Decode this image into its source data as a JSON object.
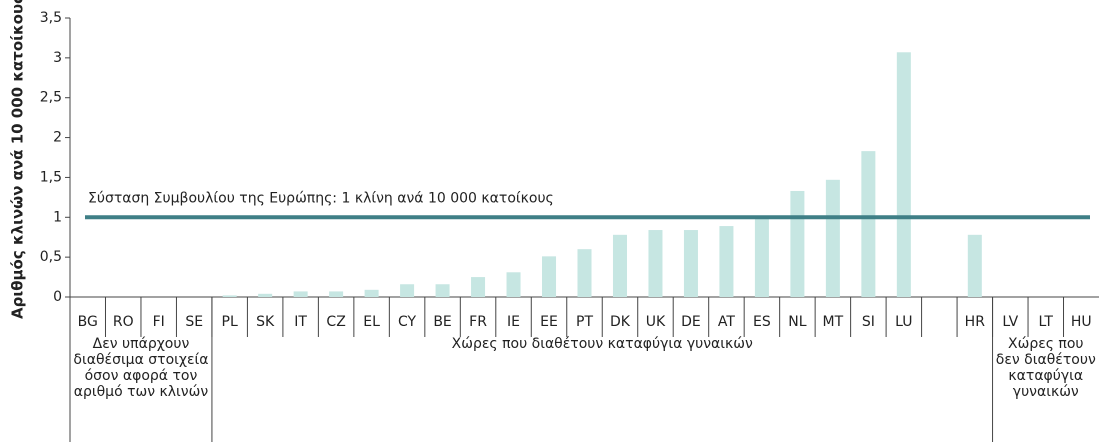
{
  "chart_data": {
    "type": "bar",
    "ylabel": "Αριθμός κλινών ανά 10 000 κατοίκους",
    "categories": [
      "BG",
      "RO",
      "FI",
      "SE",
      "PL",
      "SK",
      "IT",
      "CZ",
      "EL",
      "CY",
      "BE",
      "FR",
      "IE",
      "EE",
      "PT",
      "DK",
      "UK",
      "DE",
      "AT",
      "ES",
      "NL",
      "MT",
      "SI",
      "LU",
      null,
      "HR",
      "LV",
      "LT",
      "HU"
    ],
    "values": [
      null,
      null,
      null,
      null,
      0.02,
      0.04,
      0.07,
      0.07,
      0.09,
      0.16,
      0.16,
      0.25,
      0.31,
      0.51,
      0.6,
      0.78,
      0.84,
      0.84,
      0.89,
      0.99,
      1.33,
      1.47,
      1.83,
      3.07,
      null,
      0.78,
      null,
      null,
      null
    ],
    "color": "#c6e6e2",
    "ylim": [
      0,
      3.5
    ],
    "yticks": [
      0,
      {
        "value": 0.5,
        "label": "0,5"
      },
      1,
      {
        "value": 1.5,
        "label": "1,5"
      },
      2,
      {
        "value": 2.5,
        "label": "2,5"
      },
      3,
      {
        "value": 3.5,
        "label": "3,5"
      }
    ],
    "reference_line": {
      "value": 1,
      "label": "Σύσταση Συμβουλίου της Ευρώπης: 1 κλίνη ανά 10 000 κατοίκους",
      "color": "#3f7f86"
    },
    "groups": [
      {
        "label": "Δεν υπάρχουν διαθέσιμα στοιχεία όσον αφορά τον αριθμό των κλινών",
        "first": 0,
        "last": 3
      },
      {
        "label": "Χώρες που διαθέτουν καταφύγια γυναικών",
        "first": 4,
        "last": 25
      },
      {
        "label": "Χώρες που δεν διαθέτουν καταφύγια γυναικών",
        "first": 26,
        "last": 28
      }
    ]
  }
}
